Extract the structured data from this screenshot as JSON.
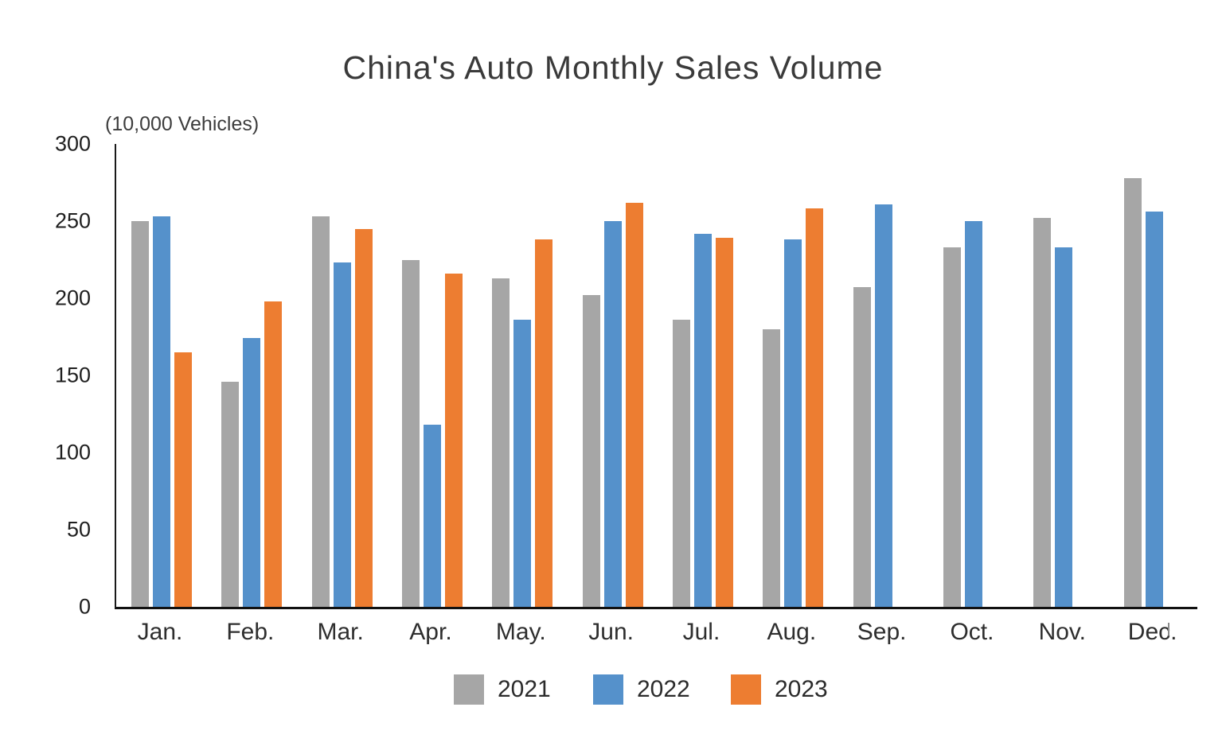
{
  "chart_data": {
    "type": "bar",
    "title": "China's Auto Monthly Sales Volume",
    "unit_label": "(10,000 Vehicles)",
    "xlabel": "",
    "ylabel": "(10,000 Vehicles)",
    "categories": [
      "Jan.",
      "Feb.",
      "Mar.",
      "Apr.",
      "May.",
      "Jun.",
      "Jul.",
      "Aug.",
      "Sep.",
      "Oct.",
      "Nov.",
      "Dec."
    ],
    "series": [
      {
        "name": "2021",
        "color": "#a6a6a6",
        "values": [
          250,
          146,
          253,
          225,
          213,
          202,
          186,
          180,
          207,
          233,
          252,
          278
        ]
      },
      {
        "name": "2022",
        "color": "#5591cb",
        "values": [
          253,
          174,
          223,
          118,
          186,
          250,
          242,
          238,
          261,
          250,
          233,
          256
        ]
      },
      {
        "name": "2023",
        "color": "#ed7d31",
        "values": [
          165,
          198,
          245,
          216,
          238,
          262,
          239,
          258,
          null,
          null,
          null,
          null
        ]
      }
    ],
    "ylim": [
      0,
      300
    ],
    "y_ticks": [
      300,
      250,
      200,
      150,
      100,
      50,
      0
    ],
    "grid": false,
    "legend_position": "bottom",
    "axis_color": "#1a1a1a"
  }
}
